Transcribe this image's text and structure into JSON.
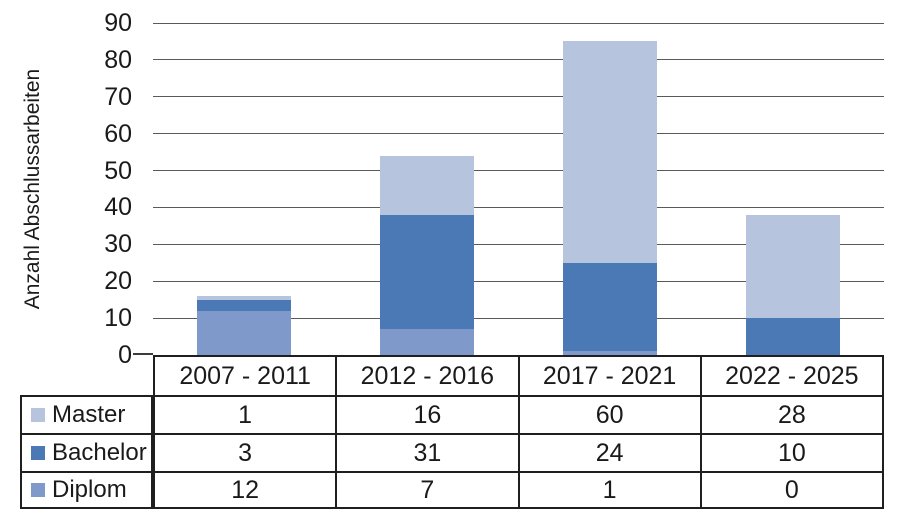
{
  "chart_data": {
    "type": "bar",
    "stacked": true,
    "title": "",
    "xlabel": "",
    "ylabel": "Anzahl Abschlussarbeiten",
    "categories": [
      "2007 - 2011",
      "2012 - 2016",
      "2017 - 2021",
      "2022 - 2025"
    ],
    "series": [
      {
        "name": "Master",
        "color": "#b7c4de",
        "values": [
          1,
          16,
          60,
          28
        ]
      },
      {
        "name": "Bachelor",
        "color": "#4b79b5",
        "values": [
          3,
          31,
          24,
          10
        ]
      },
      {
        "name": "Diplom",
        "color": "#7f9aca",
        "values": [
          12,
          7,
          1,
          0
        ]
      }
    ],
    "stack_order_bottom_to_top": [
      "Diplom",
      "Bachelor",
      "Master"
    ],
    "ylim": [
      0,
      90
    ],
    "yticks": [
      0,
      10,
      20,
      30,
      40,
      50,
      60,
      70,
      80,
      90
    ],
    "grid": true,
    "legend_position": "table-left"
  },
  "colors": {
    "gridline": "#5a5a5a",
    "table_border": "#1f1f1f",
    "text": "#1a1a1a",
    "background": "#ffffff"
  }
}
